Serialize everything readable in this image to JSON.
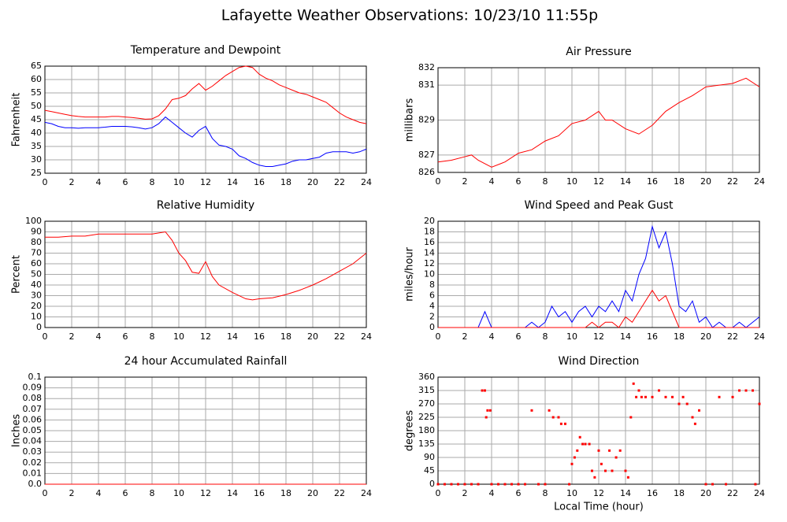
{
  "title": "Lafayette Weather Observations: 10/23/10 11:55p",
  "chart_data": [
    {
      "type": "line",
      "title": "Temperature and Dewpoint",
      "ylabel": "Fahrenheit",
      "x": [
        0,
        0.5,
        1,
        1.5,
        2,
        2.5,
        3,
        3.5,
        4,
        4.5,
        5,
        5.5,
        6,
        6.5,
        7,
        7.5,
        8,
        8.5,
        9,
        9.5,
        10,
        10.5,
        11,
        11.5,
        12,
        12.5,
        13,
        13.5,
        14,
        14.5,
        15,
        15.5,
        16,
        16.5,
        17,
        17.5,
        18,
        18.5,
        19,
        19.5,
        20,
        20.5,
        21,
        21.5,
        22,
        22.5,
        23,
        23.5,
        24
      ],
      "series": [
        {
          "color": "#ff0000",
          "values": [
            48.5,
            48,
            47.5,
            47,
            46.5,
            46.2,
            46,
            46,
            46,
            46,
            46.2,
            46.2,
            46,
            45.8,
            45.5,
            45.2,
            45.3,
            46.5,
            49,
            52.5,
            53,
            54,
            56.5,
            58.5,
            56,
            57.5,
            59.5,
            61.5,
            63,
            64.5,
            65,
            64.5,
            62,
            60.5,
            59.5,
            58,
            57,
            56,
            55,
            54.5,
            53.5,
            52.5,
            51.5,
            49.5,
            47.5,
            46,
            45,
            44,
            43.5
          ]
        },
        {
          "color": "#0000ff",
          "values": [
            44,
            43.5,
            42.5,
            42,
            42,
            41.8,
            42,
            42,
            42,
            42.2,
            42.5,
            42.5,
            42.5,
            42.3,
            42,
            41.5,
            42,
            43.5,
            46,
            44,
            42,
            40,
            38.5,
            41,
            42.5,
            38,
            35.5,
            35,
            34,
            31.5,
            30.5,
            29,
            28,
            27.5,
            27.5,
            28,
            28.5,
            29.5,
            30,
            30,
            30.5,
            31,
            32.5,
            33,
            33,
            33,
            32.5,
            33,
            34
          ]
        }
      ],
      "xlim": [
        0,
        24
      ],
      "xticks": [
        0,
        2,
        4,
        6,
        8,
        10,
        12,
        14,
        16,
        18,
        20,
        22,
        24
      ],
      "ylim": [
        25,
        65
      ],
      "yticks": [
        25,
        30,
        35,
        40,
        45,
        50,
        55,
        60,
        65
      ],
      "grid": true
    },
    {
      "type": "line",
      "title": "Air Pressure",
      "ylabel": "millibars",
      "x": [
        0,
        1,
        2,
        2.5,
        3,
        4,
        5,
        6,
        7,
        8,
        9,
        10,
        11,
        12,
        12.5,
        13,
        14,
        15,
        16,
        17,
        18,
        19,
        20,
        21,
        22,
        23,
        24
      ],
      "series": [
        {
          "color": "#ff0000",
          "values": [
            826.6,
            826.7,
            826.9,
            827,
            826.7,
            826.3,
            826.6,
            827.1,
            827.3,
            827.8,
            828.1,
            828.8,
            829,
            829.5,
            829,
            829,
            828.5,
            828.2,
            828.7,
            829.5,
            830,
            830.4,
            830.9,
            831,
            831.1,
            831.4,
            830.9
          ]
        }
      ],
      "xlim": [
        0,
        24
      ],
      "xticks": [
        0,
        2,
        4,
        6,
        8,
        10,
        12,
        14,
        16,
        18,
        20,
        22,
        24
      ],
      "ylim": [
        826,
        832
      ],
      "yticks": [
        826,
        827,
        829,
        831,
        832
      ],
      "grid": true
    },
    {
      "type": "line",
      "title": "Relative Humidity",
      "ylabel": "Percent",
      "x": [
        0,
        1,
        2,
        3,
        4,
        5,
        6,
        7,
        8,
        9,
        9.5,
        10,
        10.5,
        11,
        11.5,
        12,
        12.5,
        13,
        14,
        15,
        15.5,
        16,
        17,
        18,
        19,
        20,
        21,
        22,
        23,
        24
      ],
      "series": [
        {
          "color": "#ff0000",
          "values": [
            85,
            85,
            86,
            86,
            88,
            88,
            88,
            88,
            88,
            90,
            82,
            70,
            63,
            52,
            51,
            62,
            48,
            40,
            33,
            27,
            26,
            27,
            28,
            31,
            35,
            40,
            46,
            53,
            60,
            70
          ]
        }
      ],
      "xlim": [
        0,
        24
      ],
      "xticks": [
        0,
        2,
        4,
        6,
        8,
        10,
        12,
        14,
        16,
        18,
        20,
        22,
        24
      ],
      "ylim": [
        0,
        100
      ],
      "yticks": [
        0,
        10,
        20,
        30,
        40,
        50,
        60,
        70,
        80,
        90,
        100
      ],
      "grid": true
    },
    {
      "type": "line",
      "title": "Wind Speed and Peak Gust",
      "ylabel": "miles/hour",
      "x": [
        0,
        0.5,
        1,
        1.5,
        2,
        2.5,
        3,
        3.5,
        4,
        4.5,
        5,
        5.5,
        6,
        6.5,
        7,
        7.5,
        8,
        8.5,
        9,
        9.5,
        10,
        10.5,
        11,
        11.5,
        12,
        12.5,
        13,
        13.5,
        14,
        14.5,
        15,
        15.5,
        16,
        16.5,
        17,
        17.5,
        18,
        18.5,
        19,
        19.5,
        20,
        20.5,
        21,
        21.5,
        22,
        22.5,
        23,
        23.5,
        24
      ],
      "series": [
        {
          "color": "#0000ff",
          "values": [
            0,
            0,
            0,
            0,
            0,
            0,
            0,
            3,
            0,
            0,
            0,
            0,
            0,
            0,
            1,
            0,
            1,
            4,
            2,
            3,
            1,
            3,
            4,
            2,
            4,
            3,
            5,
            3,
            7,
            5,
            10,
            13,
            19,
            15,
            18,
            12,
            4,
            3,
            5,
            1,
            2,
            0,
            1,
            0,
            0,
            1,
            0,
            1,
            2
          ]
        },
        {
          "color": "#ff0000",
          "values": [
            0,
            0,
            0,
            0,
            0,
            0,
            0,
            0,
            0,
            0,
            0,
            0,
            0,
            0,
            0,
            0,
            0,
            0,
            0,
            0,
            0,
            0,
            0,
            1,
            0,
            1,
            1,
            0,
            2,
            1,
            3,
            5,
            7,
            5,
            6,
            3,
            0,
            0,
            0,
            0,
            0,
            0,
            0,
            0,
            0,
            0,
            0,
            0,
            0
          ]
        }
      ],
      "xlim": [
        0,
        24
      ],
      "xticks": [
        0,
        2,
        4,
        6,
        8,
        10,
        12,
        14,
        16,
        18,
        20,
        22,
        24
      ],
      "ylim": [
        0,
        20
      ],
      "yticks": [
        0,
        2,
        4,
        6,
        8,
        10,
        12,
        14,
        16,
        18,
        20
      ],
      "grid": true
    },
    {
      "type": "line",
      "title": "24 hour Accumulated Rainfall",
      "ylabel": "Inches",
      "x": [
        0,
        24
      ],
      "series": [
        {
          "color": "#ff0000",
          "values": [
            0,
            0
          ]
        }
      ],
      "xlim": [
        0,
        24
      ],
      "xticks": [
        0,
        2,
        4,
        6,
        8,
        10,
        12,
        14,
        16,
        18,
        20,
        22,
        24
      ],
      "ylim": [
        0,
        0.1
      ],
      "yticks": [
        {
          "value": 0,
          "label": "0.0"
        },
        0.01,
        0.02,
        0.03,
        0.04,
        0.05,
        0.06,
        0.07,
        0.08,
        0.09,
        0.1
      ],
      "grid": true
    },
    {
      "type": "scatter",
      "title": "Wind Direction",
      "ylabel": "degrees",
      "xlabel": "Local Time (hour)",
      "x": [
        0,
        0.5,
        1,
        1.5,
        2,
        2.5,
        3,
        3.3,
        3.5,
        3.6,
        3.7,
        3.9,
        4,
        4.5,
        5,
        5.5,
        6,
        6.5,
        7,
        7.5,
        8,
        8.3,
        8.6,
        9,
        9.2,
        9.5,
        9.8,
        10,
        10.2,
        10.4,
        10.6,
        10.8,
        11,
        11.3,
        11.5,
        11.7,
        12,
        12.2,
        12.5,
        12.8,
        13,
        13.3,
        13.6,
        14,
        14.2,
        14.4,
        14.6,
        14.8,
        15,
        15.2,
        15.5,
        16,
        16.5,
        17,
        17.5,
        18,
        18.3,
        18.6,
        19,
        19.2,
        19.5,
        20,
        20.5,
        21,
        21.5,
        22,
        22.5,
        23,
        23.5,
        23.7,
        24
      ],
      "series": [
        {
          "color": "#ff0000",
          "values": [
            0,
            0,
            0,
            0,
            0,
            0,
            0,
            315,
            315,
            225,
            248,
            248,
            0,
            0,
            0,
            0,
            0,
            0,
            248,
            0,
            0,
            248,
            225,
            225,
            203,
            203,
            0,
            68,
            90,
            113,
            158,
            135,
            135,
            135,
            45,
            23,
            113,
            68,
            45,
            113,
            45,
            90,
            113,
            45,
            23,
            225,
            338,
            293,
            315,
            293,
            293,
            293,
            315,
            293,
            293,
            270,
            293,
            270,
            225,
            203,
            248,
            0,
            0,
            293,
            0,
            293,
            315,
            315,
            315,
            0,
            270
          ]
        }
      ],
      "xlim": [
        0,
        24
      ],
      "xticks": [
        0,
        2,
        4,
        6,
        8,
        10,
        12,
        14,
        16,
        18,
        20,
        22,
        24
      ],
      "ylim": [
        0,
        360
      ],
      "yticks": [
        0,
        45,
        90,
        135,
        180,
        225,
        270,
        315,
        360
      ],
      "grid": true
    }
  ]
}
